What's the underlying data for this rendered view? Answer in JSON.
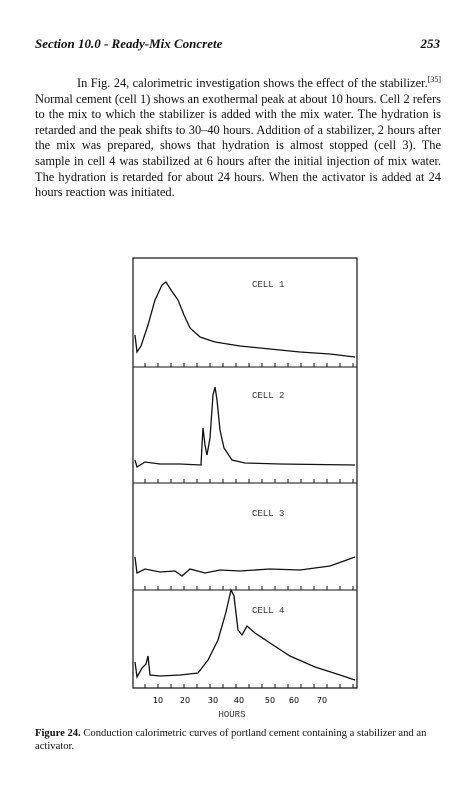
{
  "header": {
    "section": "Section 10.0 - Ready-Mix Concrete",
    "page": "253"
  },
  "paragraph": {
    "before": "In Fig. 24, calorimetric investigation shows the effect of the stabilizer.",
    "ref": "[35]",
    "after": " Normal cement (cell 1) shows an exothermal peak at about 10 hours. Cell 2 refers to the mix to which the stabilizer is added with the mix water. The hydration is retarded and the peak shifts to 30–40 hours. Addition of a stabilizer, 2 hours after the mix was prepared, shows that hydration is almost stopped (cell 3). The sample in cell 4 was stabilized at 6 hours after the initial injection of mix water. The hydration is retarded for about 24 hours. When the activator is added at 24 hours reaction was initiated."
  },
  "figure": {
    "cells": [
      "CELL 1",
      "CELL 2",
      "CELL 3",
      "CELL 4"
    ],
    "xticks": [
      10,
      20,
      30,
      40,
      50,
      60,
      70
    ],
    "xlabel": "HOURS"
  },
  "caption": {
    "label": "Figure 24.",
    "text": " Conduction calorimetric curves of portland cement containing a stabilizer and an activator."
  }
}
